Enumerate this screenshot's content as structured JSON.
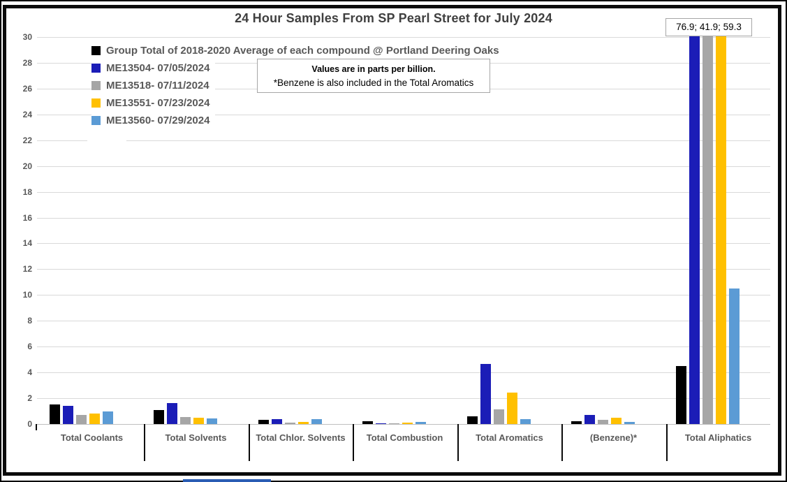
{
  "chart_data": {
    "type": "bar",
    "title": "24 Hour Samples From SP Pearl Street for July 2024",
    "categories": [
      "Total Coolants",
      "Total Solvents",
      "Total Chlor. Solvents",
      "Total Combustion",
      "Total Aromatics",
      "(Benzene)*",
      "Total Aliphatics"
    ],
    "series": [
      {
        "name": "Group Total of 2018-2020 Average of each compound @ Portland Deering Oaks",
        "color": "#000000",
        "values": [
          1.5,
          1.1,
          0.3,
          0.2,
          0.6,
          0.2,
          4.5
        ]
      },
      {
        "name": "ME13504- 07/05/2024",
        "color": "#1b1db7",
        "values": [
          1.4,
          1.6,
          0.4,
          0.05,
          4.65,
          0.7,
          76.9
        ]
      },
      {
        "name": "ME13518- 07/11/2024",
        "color": "#a6a6a6",
        "values": [
          0.7,
          0.55,
          0.1,
          0.05,
          1.15,
          0.35,
          41.9
        ]
      },
      {
        "name": "ME13551- 07/23/2024",
        "color": "#ffc000",
        "values": [
          0.8,
          0.5,
          0.15,
          0.1,
          2.45,
          0.5,
          59.3
        ]
      },
      {
        "name": "ME13560- 07/29/2024",
        "color": "#5b9bd5",
        "values": [
          1.0,
          0.45,
          0.4,
          0.15,
          0.4,
          0.15,
          10.5
        ]
      }
    ],
    "ylim": [
      0,
      30
    ],
    "ytick_step": 2,
    "grid": true,
    "legend_position": "top-left-inside",
    "units_note": {
      "line1": "Values are in parts per billion.",
      "line2": "*Benzene is also included in the Total Aromatics"
    },
    "callout": "76.9; 41.9; 59.3"
  },
  "colors": {
    "gridline": "#d9d9d9",
    "axis_text": "#595959",
    "title_text": "#3f3f3f",
    "frame": "#0a0a0a"
  }
}
